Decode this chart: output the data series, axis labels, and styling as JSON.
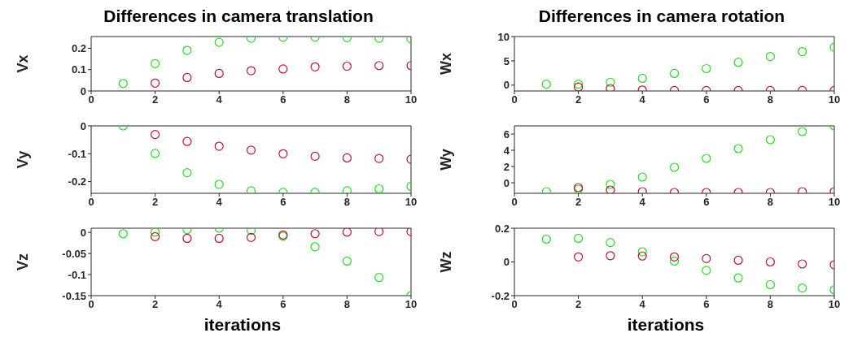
{
  "chart_data": [
    {
      "type": "scatter",
      "title": "Differences in camera translation",
      "ylabel": "Vx",
      "x": [
        1,
        2,
        3,
        4,
        5,
        6,
        7,
        8,
        9,
        10
      ],
      "xlim": [
        0,
        10
      ],
      "xticks": [
        0,
        2,
        4,
        6,
        8,
        10
      ],
      "ylim": [
        0,
        0.255
      ],
      "yticks": [
        0,
        0.1,
        0.2
      ],
      "marker": "circle",
      "grid": false,
      "legend": false,
      "series": [
        {
          "color": "#22dd22",
          "values": [
            0.035,
            0.128,
            0.19,
            0.228,
            0.247,
            0.252,
            0.252,
            0.25,
            0.247,
            0.244
          ]
        },
        {
          "color": "#c01030",
          "x": [
            2,
            3,
            4,
            5,
            6,
            7,
            8,
            9,
            10
          ],
          "values": [
            0.037,
            0.063,
            0.082,
            0.095,
            0.103,
            0.113,
            0.116,
            0.119,
            0.119
          ]
        }
      ]
    },
    {
      "type": "scatter",
      "title": "Differences in camera rotation",
      "ylabel": "Wx",
      "x": [
        1,
        2,
        3,
        4,
        5,
        6,
        7,
        8,
        9,
        10
      ],
      "xlim": [
        0,
        10
      ],
      "xticks": [
        0,
        2,
        4,
        6,
        8,
        10
      ],
      "ylim": [
        -1.2,
        10
      ],
      "yticks": [
        0,
        5,
        10
      ],
      "marker": "circle",
      "grid": false,
      "legend": false,
      "series": [
        {
          "color": "#22dd22",
          "values": [
            0.2,
            0.2,
            0.6,
            1.4,
            2.4,
            3.4,
            4.7,
            5.9,
            6.9,
            7.8
          ]
        },
        {
          "color": "#c01030",
          "x": [
            2,
            3,
            4,
            5,
            6,
            7,
            8,
            9,
            10
          ],
          "values": [
            -0.4,
            -0.7,
            -1,
            -1.1,
            -1.1,
            -1.1,
            -1.1,
            -1.1,
            -1.1
          ]
        }
      ]
    },
    {
      "type": "scatter",
      "ylabel": "Vy",
      "x": [
        1,
        2,
        3,
        4,
        5,
        6,
        7,
        8,
        9,
        10
      ],
      "xlim": [
        0,
        10
      ],
      "xticks": [
        0,
        2,
        4,
        6,
        8,
        10
      ],
      "ylim": [
        -0.242,
        0
      ],
      "yticks": [
        -0.2,
        -0.1,
        0
      ],
      "marker": "circle",
      "grid": false,
      "legend": false,
      "series": [
        {
          "color": "#22dd22",
          "values": [
            0,
            -0.099,
            -0.168,
            -0.21,
            -0.233,
            -0.239,
            -0.239,
            -0.233,
            -0.226,
            -0.217
          ]
        },
        {
          "color": "#c01030",
          "x": [
            2,
            3,
            4,
            5,
            6,
            7,
            8,
            9,
            10
          ],
          "values": [
            -0.031,
            -0.056,
            -0.073,
            -0.087,
            -0.1,
            -0.109,
            -0.115,
            -0.117,
            -0.12
          ]
        }
      ]
    },
    {
      "type": "scatter",
      "ylabel": "Wy",
      "x": [
        1,
        2,
        3,
        4,
        5,
        6,
        7,
        8,
        9,
        10
      ],
      "xlim": [
        0,
        10
      ],
      "xticks": [
        0,
        2,
        4,
        6,
        8,
        10
      ],
      "ylim": [
        -1.3,
        7
      ],
      "yticks": [
        0,
        2,
        4,
        6
      ],
      "marker": "circle",
      "grid": false,
      "legend": false,
      "series": [
        {
          "color": "#22dd22",
          "values": [
            -1.1,
            -0.8,
            -0.2,
            0.7,
            1.9,
            3,
            4.2,
            5.3,
            6.3,
            7
          ]
        },
        {
          "color": "#c01030",
          "x": [
            2,
            3,
            4,
            5,
            6,
            7,
            8,
            9,
            10
          ],
          "values": [
            -0.6,
            -0.9,
            -1.1,
            -1.2,
            -1.2,
            -1.2,
            -1.2,
            -1.1,
            -1.1
          ]
        }
      ]
    },
    {
      "type": "scatter",
      "ylabel": "Vz",
      "xlabel": "iterations",
      "x": [
        1,
        2,
        3,
        4,
        5,
        6,
        7,
        8,
        9,
        10
      ],
      "xlim": [
        0,
        10
      ],
      "xticks": [
        0,
        2,
        4,
        6,
        8,
        10
      ],
      "ylim": [
        -0.15,
        0.01
      ],
      "yticks": [
        -0.15,
        -0.1,
        -0.05,
        0
      ],
      "marker": "circle",
      "grid": false,
      "legend": false,
      "series": [
        {
          "color": "#22dd22",
          "values": [
            -0.003,
            0.001,
            0.007,
            0.01,
            0.005,
            -0.009,
            -0.034,
            -0.068,
            -0.107,
            -0.15
          ]
        },
        {
          "color": "#c01030",
          "x": [
            2,
            3,
            4,
            5,
            6,
            7,
            8,
            9,
            10
          ],
          "values": [
            -0.01,
            -0.014,
            -0.014,
            -0.012,
            -0.006,
            -0.003,
            0.001,
            0.002,
            0.002
          ]
        }
      ]
    },
    {
      "type": "scatter",
      "ylabel": "Wz",
      "xlabel": "iterations",
      "x": [
        1,
        2,
        3,
        4,
        5,
        6,
        7,
        8,
        9,
        10
      ],
      "xlim": [
        0,
        10
      ],
      "xticks": [
        0,
        2,
        4,
        6,
        8,
        10
      ],
      "ylim": [
        -0.2,
        0.2
      ],
      "yticks": [
        -0.2,
        0,
        0.2
      ],
      "marker": "circle",
      "grid": false,
      "legend": false,
      "series": [
        {
          "color": "#22dd22",
          "values": [
            0.135,
            0.14,
            0.115,
            0.06,
            0.005,
            -0.05,
            -0.095,
            -0.135,
            -0.155,
            -0.165
          ]
        },
        {
          "color": "#c01030",
          "x": [
            2,
            3,
            4,
            5,
            6,
            7,
            8,
            9,
            10
          ],
          "values": [
            0.03,
            0.037,
            0.035,
            0.03,
            0.02,
            0.01,
            0,
            -0.012,
            -0.017
          ]
        }
      ]
    }
  ]
}
